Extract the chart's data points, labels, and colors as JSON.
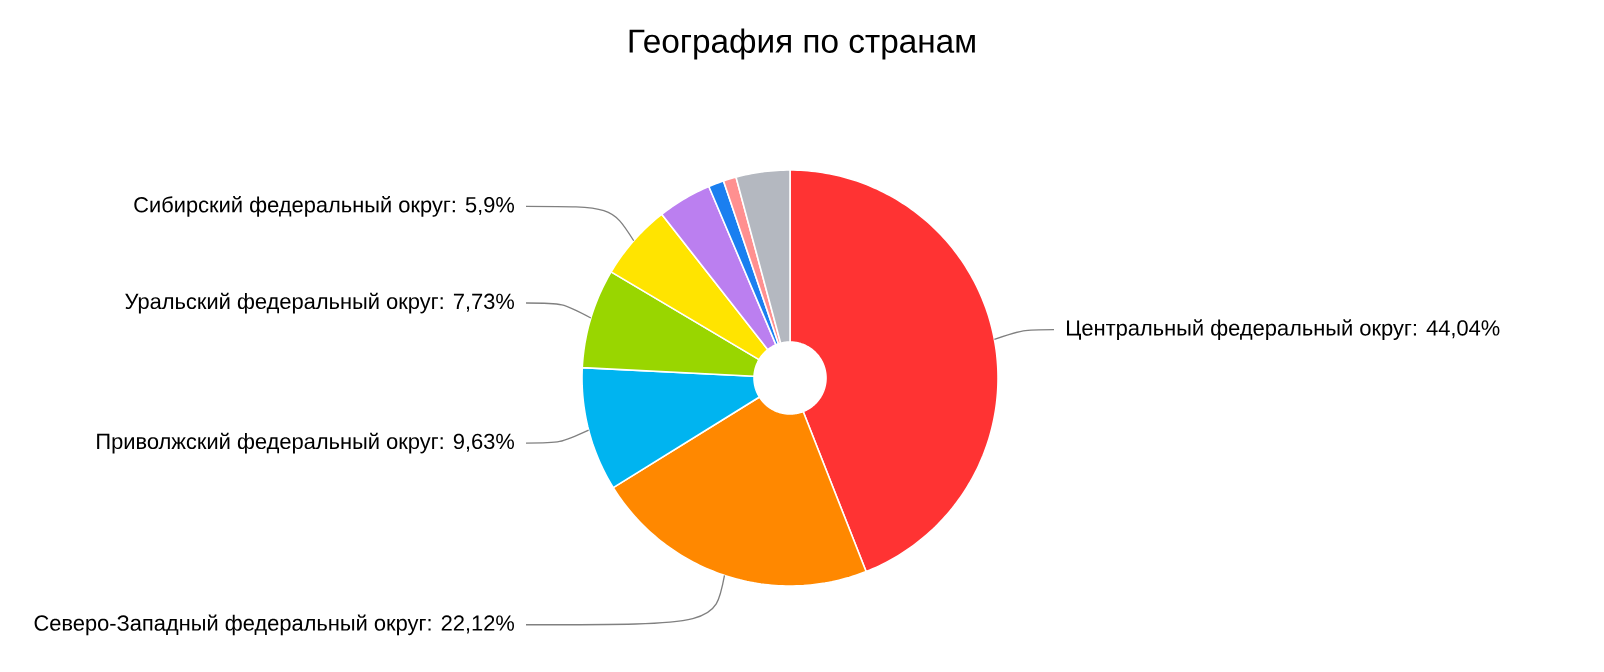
{
  "chart_data": {
    "type": "donut",
    "title": "География по странам",
    "categories": [
      "Центральный федеральный округ",
      "Северо-Западный федеральный округ",
      "Приволжский федеральный округ",
      "Уральский федеральный округ",
      "Сибирский федеральный округ",
      null,
      null,
      null,
      null
    ],
    "values": [
      44.04,
      22.12,
      9.63,
      7.73,
      5.9,
      4.2,
      1.2,
      1.0,
      4.18
    ],
    "value_labels": [
      ": 44,04%",
      ": 22,12%",
      ": 9,63%",
      ": 7,73%",
      ": 5,9%",
      null,
      null,
      null,
      null
    ],
    "colors": [
      "#ff3333",
      "#ff8800",
      "#00b4f0",
      "#99d600",
      "#ffe400",
      "#bb7ff0",
      "#1a7ff0",
      "#ff9090",
      "#b4b8c0"
    ]
  }
}
